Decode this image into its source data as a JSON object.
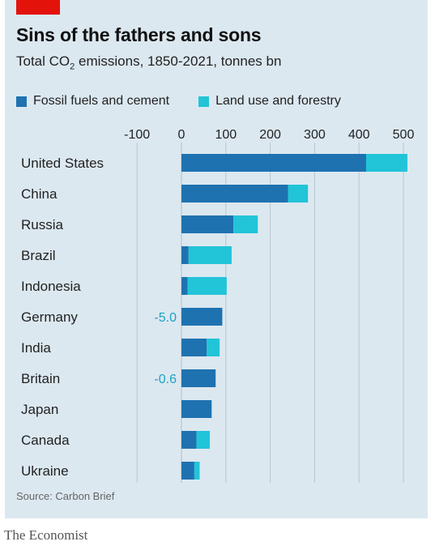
{
  "header": {
    "title": "Sins of the fathers and sons",
    "subtitle_pre": "Total CO",
    "subtitle_sub": "2",
    "subtitle_post": " emissions, 1850-2021, tonnes bn"
  },
  "source": "Source: Carbon Brief",
  "brand": "The Economist",
  "colors": {
    "fossil": "#1e72b0",
    "land": "#22c4d8",
    "negative_label": "#1aa3c4",
    "grid": "#b9c6cf",
    "panel": "#dce8f0",
    "accent": "#e3120b"
  },
  "chart_data": {
    "type": "bar",
    "orientation": "horizontal",
    "stacked": true,
    "xlim": [
      -100,
      500
    ],
    "xticks": [
      -100,
      0,
      100,
      200,
      300,
      400,
      500
    ],
    "xtick_labels": [
      "-100",
      "0",
      "100",
      "200",
      "300",
      "400",
      "500"
    ],
    "categories": [
      "United States",
      "China",
      "Russia",
      "Brazil",
      "Indonesia",
      "Germany",
      "India",
      "Britain",
      "Japan",
      "Canada",
      "Ukraine"
    ],
    "series": [
      {
        "name": "Fossil fuels and cement",
        "values": [
          416,
          240,
          117,
          16,
          14,
          92,
          57,
          77,
          68,
          34,
          29
        ]
      },
      {
        "name": "Land use and forestry",
        "values": [
          93,
          45,
          55,
          97,
          88,
          -5.0,
          29,
          -0.6,
          0,
          30,
          12
        ]
      }
    ],
    "annotations": [
      {
        "category": "Germany",
        "text": "-5.0"
      },
      {
        "category": "Britain",
        "text": "-0.6"
      }
    ],
    "legend": "top-left",
    "grid": true
  }
}
